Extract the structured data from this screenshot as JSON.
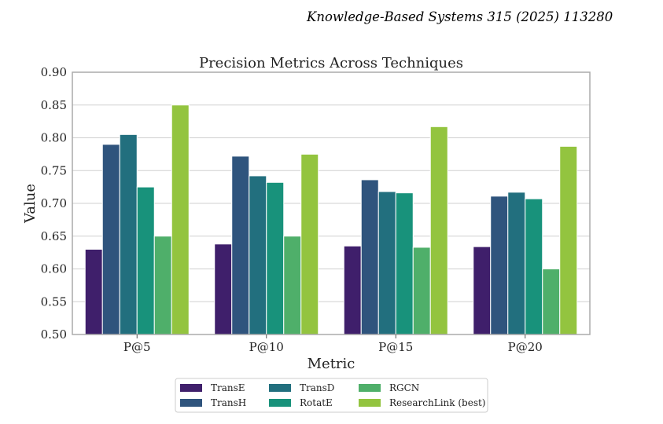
{
  "header": {
    "journal_ref": "Knowledge-Based Systems 315 (2025) 113280"
  },
  "chart_data": {
    "type": "bar",
    "title": "Precision Metrics Across Techniques",
    "xlabel": "Metric",
    "ylabel": "Value",
    "ylim": [
      0.5,
      0.9
    ],
    "yticks": [
      0.5,
      0.55,
      0.6,
      0.65,
      0.7,
      0.75,
      0.8,
      0.85,
      0.9
    ],
    "ytick_labels": [
      "0.50",
      "0.55",
      "0.60",
      "0.65",
      "0.70",
      "0.75",
      "0.80",
      "0.85",
      "0.90"
    ],
    "grid": true,
    "legend_position": "bottom-center",
    "categories": [
      "P@5",
      "P@10",
      "P@15",
      "P@20"
    ],
    "series": [
      {
        "name": "TransE",
        "color": "#3f1f6b",
        "values": [
          0.63,
          0.638,
          0.635,
          0.634
        ]
      },
      {
        "name": "TransH",
        "color": "#2f547d",
        "values": [
          0.79,
          0.772,
          0.736,
          0.711
        ]
      },
      {
        "name": "TransD",
        "color": "#226f7e",
        "values": [
          0.805,
          0.742,
          0.718,
          0.717
        ]
      },
      {
        "name": "RotatE",
        "color": "#18927b",
        "values": [
          0.725,
          0.732,
          0.716,
          0.707
        ]
      },
      {
        "name": "RGCN",
        "color": "#4faf6a",
        "values": [
          0.65,
          0.65,
          0.633,
          0.6
        ]
      },
      {
        "name": "ResearchLink (best)",
        "color": "#93c43f",
        "values": [
          0.85,
          0.775,
          0.817,
          0.787
        ]
      }
    ]
  }
}
